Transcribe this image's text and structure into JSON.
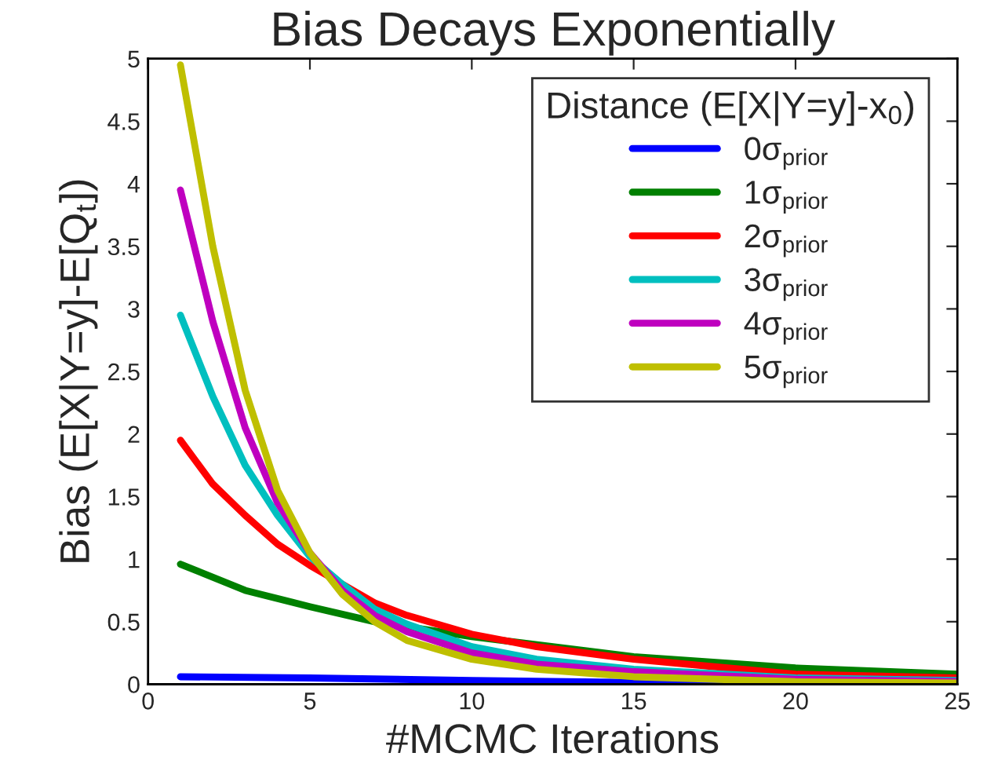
{
  "chart_data": {
    "type": "line",
    "title": "Bias Decays Exponentially",
    "xlabel": "#MCMC Iterations",
    "ylabel": "Bias (E[X|Y=y]-E[Q$_{t}$])",
    "legend_title": "Distance (E[X|Y=y]-x$_{0}$)",
    "xlim": [
      0,
      25
    ],
    "ylim": [
      0,
      5
    ],
    "xticks": [
      0,
      5,
      10,
      15,
      20,
      25
    ],
    "yticks": [
      0,
      0.5,
      1,
      1.5,
      2,
      2.5,
      3,
      3.5,
      4,
      4.5,
      5
    ],
    "grid": false,
    "legend": "top right",
    "marker": "none",
    "line_style": "solid",
    "series": [
      {
        "name": "0σ$_{prior}$",
        "color": "#0000ff",
        "x": [
          1,
          5,
          10,
          16.5,
          25
        ],
        "values": [
          0.06,
          0.05,
          0.03,
          0.01,
          0.01
        ]
      },
      {
        "name": "1σ$_{prior}$",
        "color": "#008000",
        "x": [
          1,
          3,
          5,
          7,
          10,
          15,
          20,
          25
        ],
        "values": [
          0.96,
          0.75,
          0.62,
          0.5,
          0.38,
          0.22,
          0.13,
          0.08
        ]
      },
      {
        "name": "2σ$_{prior}$",
        "color": "#ff0000",
        "x": [
          1,
          2,
          3,
          4,
          5,
          6,
          7,
          8,
          10,
          12,
          15,
          20,
          25
        ],
        "values": [
          1.95,
          1.6,
          1.35,
          1.12,
          0.95,
          0.8,
          0.65,
          0.55,
          0.4,
          0.3,
          0.2,
          0.08,
          0.05
        ]
      },
      {
        "name": "3σ$_{prior}$",
        "color": "#00bfbf",
        "x": [
          1,
          2,
          3,
          4,
          5,
          6,
          7,
          8,
          10,
          12,
          15,
          20,
          25
        ],
        "values": [
          2.95,
          2.3,
          1.75,
          1.35,
          1.02,
          0.8,
          0.6,
          0.48,
          0.3,
          0.2,
          0.12,
          0.05,
          0.03
        ]
      },
      {
        "name": "4σ$_{prior}$",
        "color": "#bf00bf",
        "x": [
          1,
          2,
          3,
          4,
          5,
          6,
          7,
          8,
          10,
          12,
          15,
          20,
          25
        ],
        "values": [
          3.95,
          2.9,
          2.05,
          1.45,
          1.05,
          0.75,
          0.55,
          0.42,
          0.25,
          0.16,
          0.1,
          0.04,
          0.02
        ]
      },
      {
        "name": "5σ$_{prior}$",
        "color": "#bfbf00",
        "x": [
          1,
          2,
          3,
          4,
          5,
          6,
          7,
          8,
          10,
          12,
          15,
          20,
          25
        ],
        "values": [
          4.95,
          3.5,
          2.35,
          1.55,
          1.05,
          0.72,
          0.5,
          0.35,
          0.2,
          0.12,
          0.06,
          0.02,
          0.01
        ]
      }
    ]
  }
}
